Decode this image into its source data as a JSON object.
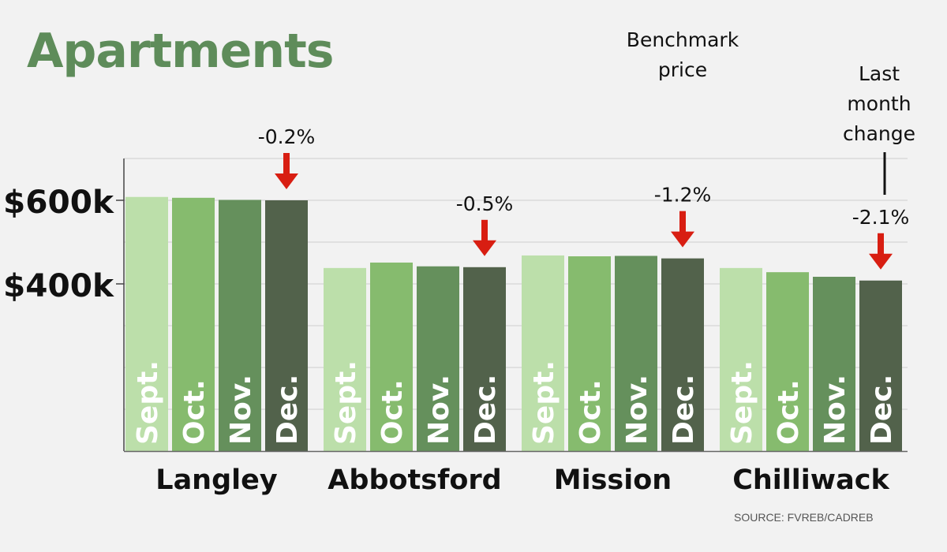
{
  "chart_data": {
    "type": "bar",
    "title": "Apartments",
    "annotation_series": "Benchmark price",
    "annotation_change": "Last month change",
    "source": "SOURCE: FVREB/CADREB",
    "ylabel": "",
    "ylim": [
      0,
      700000
    ],
    "yticks": [
      {
        "value": 400000,
        "label": "$400k"
      },
      {
        "value": 600000,
        "label": "$600k"
      }
    ],
    "months": [
      "Sept.",
      "Oct.",
      "Nov.",
      "Dec."
    ],
    "categories": [
      "Langley",
      "Abbotsford",
      "Mission",
      "Chilliwack"
    ],
    "series": [
      {
        "name": "Sept.",
        "color": "#bcdfaa",
        "values": [
          608000,
          438000,
          468000,
          438000
        ]
      },
      {
        "name": "Oct.",
        "color": "#86bb6e",
        "values": [
          606000,
          451000,
          466000,
          428000
        ]
      },
      {
        "name": "Nov.",
        "color": "#65905c",
        "values": [
          601000,
          442000,
          467000,
          417000
        ]
      },
      {
        "name": "Dec.",
        "color": "#52624b",
        "values": [
          600000,
          440000,
          461000,
          408000
        ]
      }
    ],
    "changes": [
      "-0.2%",
      "-0.5%",
      "-1.2%",
      "-2.1%"
    ],
    "arrow_color": "#d81e12"
  }
}
